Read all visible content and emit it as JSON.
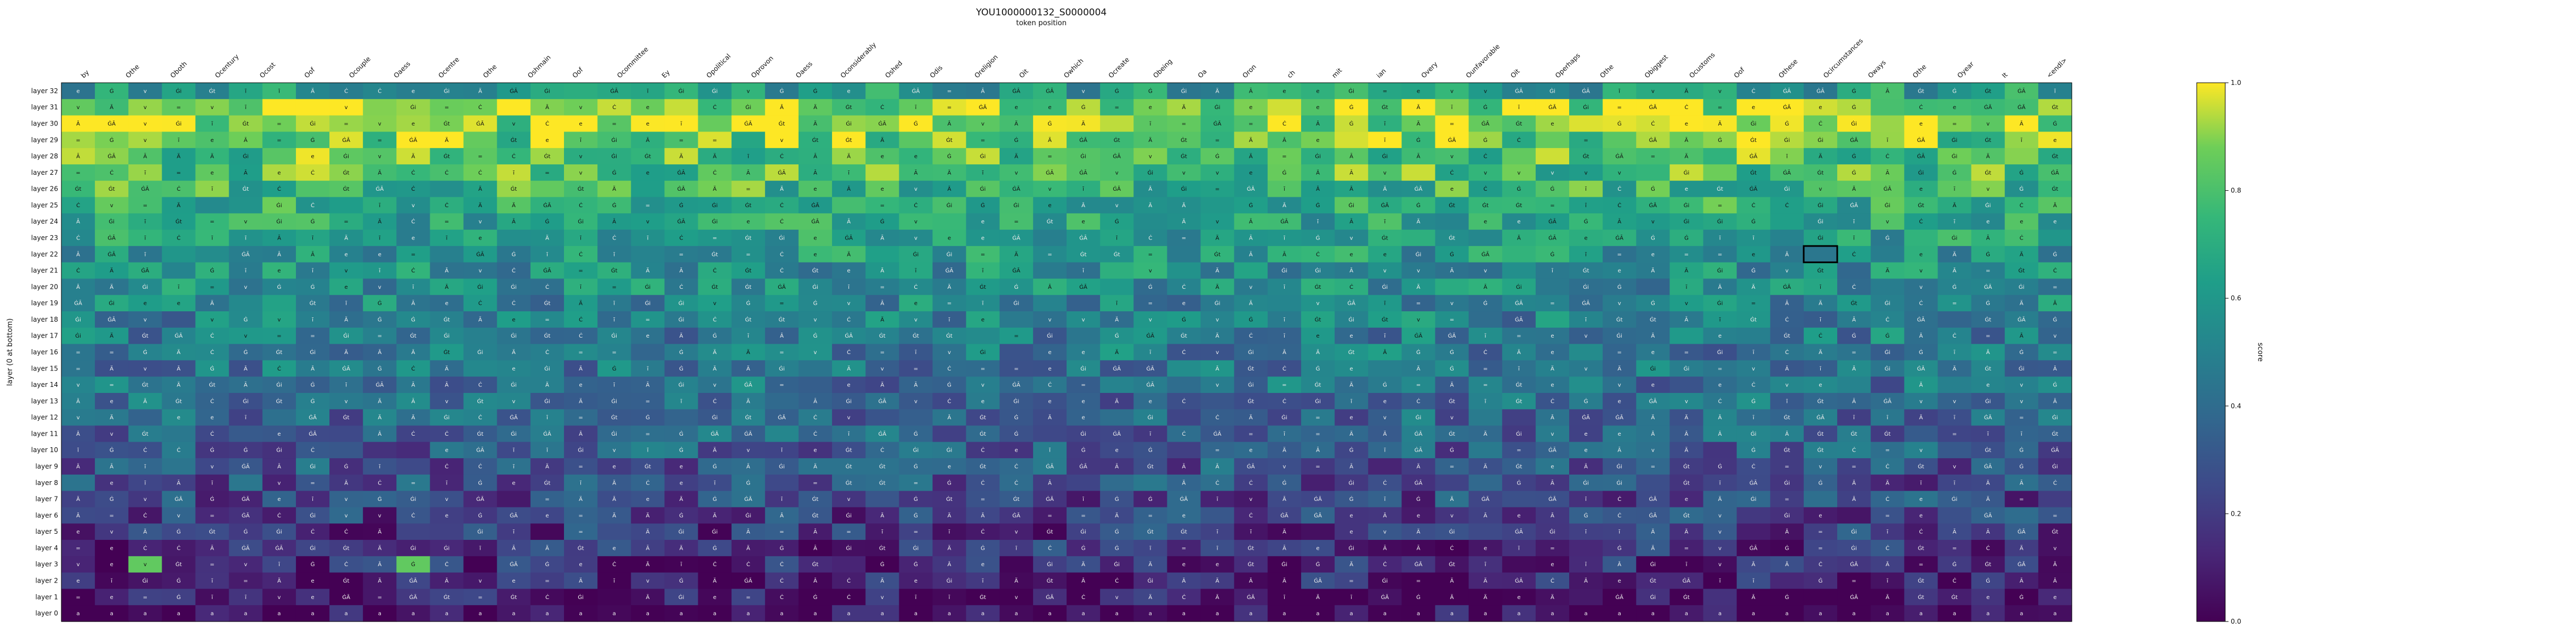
{
  "chart_data": {
    "type": "heatmap",
    "title": "YOU1000000132_S0000004",
    "subtitle": "token position",
    "xlabel": "",
    "ylabel": "layer (0 at bottom)",
    "colorbar_label": "score",
    "colorbar_ticks": [
      "0.0",
      "0.2",
      "0.4",
      "0.6",
      "0.8",
      "1.0"
    ],
    "value_range": [
      0,
      1
    ],
    "colormap": "viridis",
    "highlight": {
      "row_label": "layer 22",
      "column_index": 52
    },
    "x_tokens": [
      "by",
      "Othe",
      "Oboth",
      "Ocentury",
      "Ocost",
      "Oof",
      "Ocouple",
      "Oaess",
      "Ocentre",
      "Othe",
      "Oshmain",
      "Oof",
      "Ocommittee",
      "Ey",
      "Opolitical",
      "Oprovon",
      "Oaess",
      "Oconsiderably",
      "Oshed",
      "Odis",
      "Oreligion",
      "Oit",
      "Owhich",
      "Ocreate",
      "Obeing",
      "Oa",
      "Oron",
      "ch",
      "mit",
      "ian",
      "Overy",
      "Ounfavorable",
      "Oit",
      "Operhaps",
      "Othe",
      "Obiggest",
      "Ocustoms",
      "Oof",
      "Othese",
      "Ocircumstances",
      "Oways",
      "Othe",
      "Oyear",
      "It",
      "<endl>"
    ],
    "y_labels": [
      "layer 32",
      "layer 31",
      "layer 30",
      "layer 29",
      "layer 28",
      "layer 27",
      "layer 26",
      "layer 25",
      "layer 24",
      "layer 23",
      "layer 22",
      "layer 21",
      "layer 20",
      "layer 19",
      "layer 18",
      "layer 17",
      "layer 16",
      "layer 15",
      "layer 14",
      "layer 13",
      "layer 12",
      "layer 11",
      "layer 10",
      "layer 9",
      "layer 8",
      "layer 7",
      "layer 6",
      "layer 5",
      "layer 4",
      "layer 3",
      "layer 2",
      "layer 1",
      "layer 0"
    ],
    "row_values": [
      0.62,
      0.92,
      0.9,
      0.84,
      0.8,
      0.78,
      0.74,
      0.7,
      0.66,
      0.63,
      0.6,
      0.57,
      0.55,
      0.52,
      0.5,
      0.48,
      0.46,
      0.44,
      0.42,
      0.4,
      0.37,
      0.35,
      0.33,
      0.3,
      0.27,
      0.25,
      0.22,
      0.19,
      0.16,
      0.13,
      0.1,
      0.06,
      0.02
    ],
    "cell_text_palette": [
      "e",
      "Ā",
      "Ċ",
      "Ġ",
      "Ä",
      "ĠĀ",
      "ī",
      "=",
      "Ġi",
      "v",
      "Ġt",
      " "
    ]
  }
}
